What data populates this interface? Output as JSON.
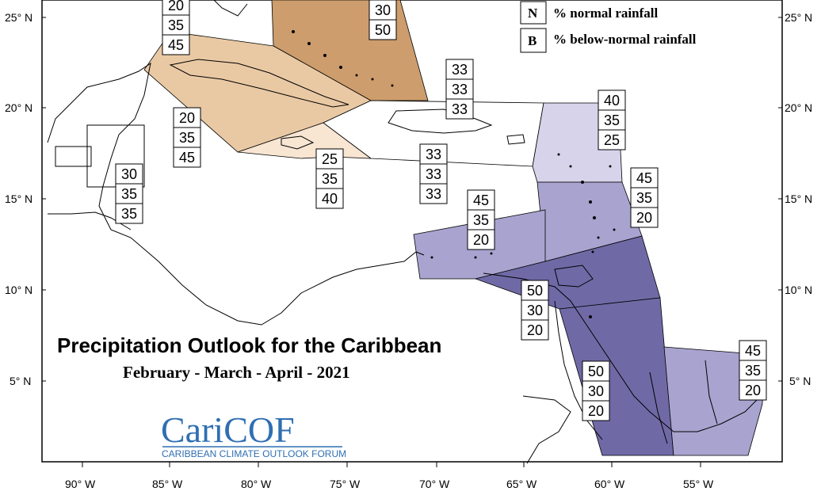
{
  "title": "Precipitation Outlook for the Caribbean",
  "subtitle": "February - March - April - 2021",
  "logo": {
    "name": "CariCOF",
    "tagline": "CARIBBEAN CLIMATE OUTLOOK FORUM"
  },
  "legend": [
    {
      "key": "N",
      "text": "% normal rainfall"
    },
    {
      "key": "B",
      "text": "% below-normal rainfall"
    }
  ],
  "lat_labels": [
    "25° N",
    "20° N",
    "15° N",
    "10° N",
    "5° N"
  ],
  "lon_labels": [
    "90° W",
    "85° W",
    "80° W",
    "75° W",
    "70° W",
    "65° W",
    "60° W",
    "55° W"
  ],
  "colors": {
    "bahamas": "#cd9d6d",
    "cuba": "#e9c9a4",
    "jamaica": "#f8e5d2",
    "western_caribbean_north": "#e9c9a4",
    "leeward": "#d6d3ea",
    "windward": "#a8a3cf",
    "southern_caribbean": "#a8a3cf",
    "trinidad_guyana": "#6f6aa6",
    "guiana_interior": "#6f6aa6",
    "french_guiana_suriname": "#a8a3cf"
  },
  "stacks": [
    {
      "id": "bahamas",
      "values": [
        "30",
        "50"
      ]
    },
    {
      "id": "cuba",
      "values": [
        "20",
        "35",
        "45"
      ]
    },
    {
      "id": "west-cuba",
      "values": [
        "20",
        "35",
        "45"
      ]
    },
    {
      "id": "hispaniola-north",
      "values": [
        "33",
        "33",
        "33"
      ]
    },
    {
      "id": "leeward",
      "values": [
        "40",
        "35",
        "25"
      ]
    },
    {
      "id": "windward-east",
      "values": [
        "45",
        "35",
        "20"
      ]
    },
    {
      "id": "jamaica",
      "values": [
        "25",
        "35",
        "40"
      ]
    },
    {
      "id": "hispaniola-south",
      "values": [
        "33",
        "33",
        "33"
      ]
    },
    {
      "id": "belize",
      "values": [
        "30",
        "35",
        "35"
      ]
    },
    {
      "id": "southern-caribbean",
      "values": [
        "45",
        "35",
        "20"
      ]
    },
    {
      "id": "trinidad",
      "values": [
        "50",
        "30",
        "20"
      ]
    },
    {
      "id": "guyana",
      "values": [
        "50",
        "30",
        "20"
      ]
    },
    {
      "id": "french-guiana",
      "values": [
        "45",
        "35",
        "20"
      ]
    }
  ]
}
